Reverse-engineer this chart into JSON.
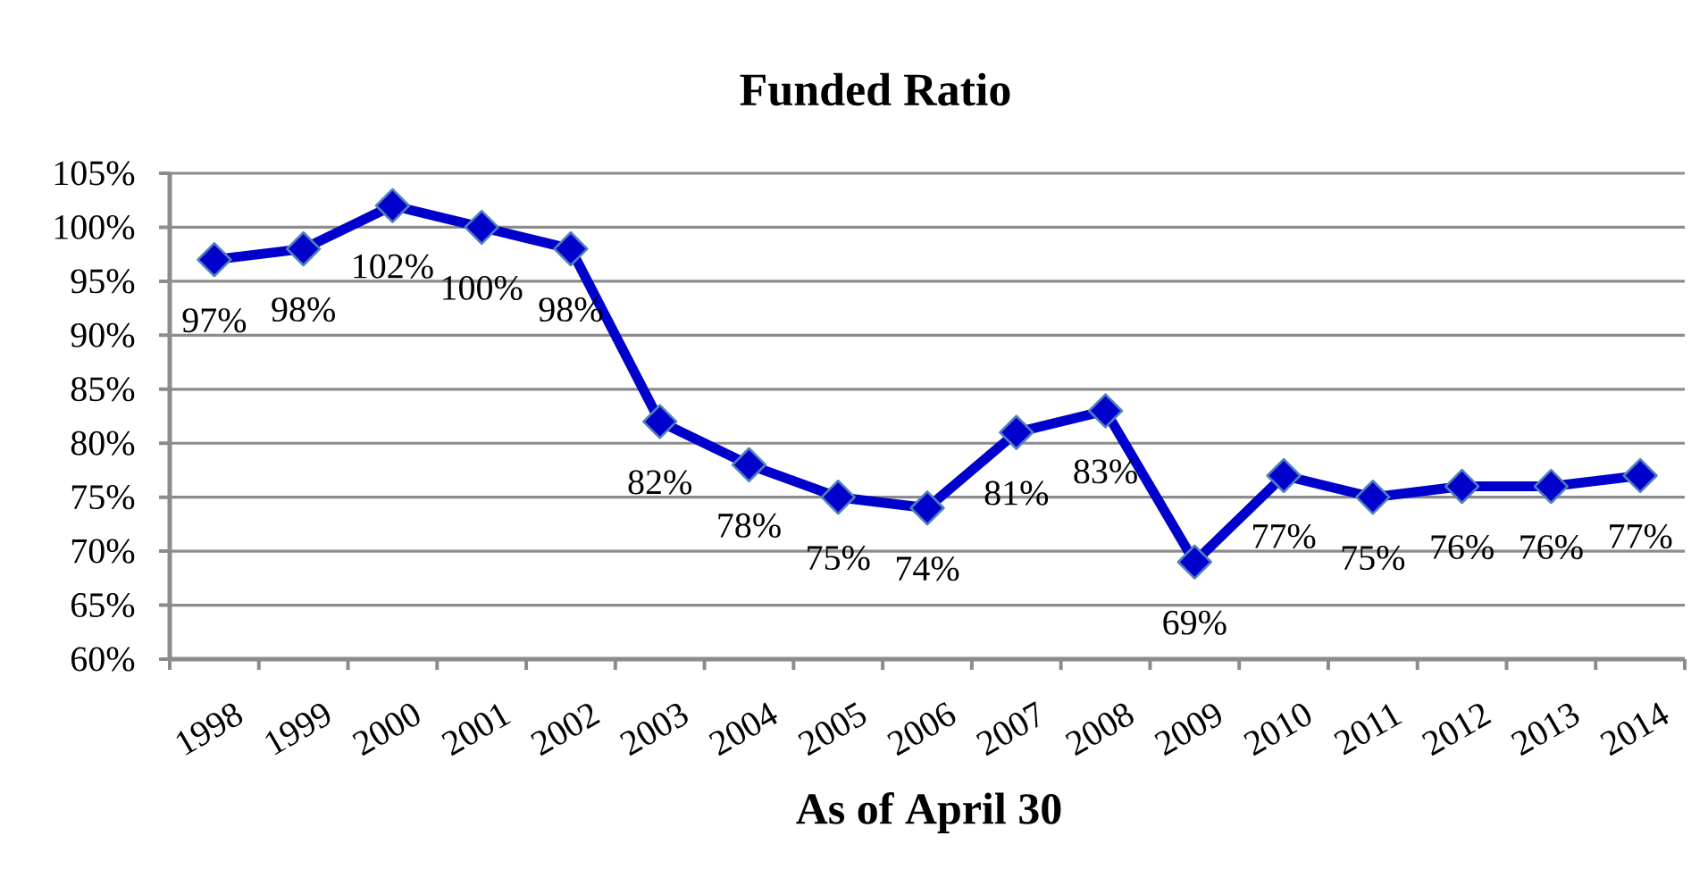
{
  "chart_data": {
    "type": "line",
    "title": "Funded Ratio",
    "xlabel": "As of April 30",
    "categories": [
      "1998",
      "1999",
      "2000",
      "2001",
      "2002",
      "2003",
      "2004",
      "2005",
      "2006",
      "2007",
      "2008",
      "2009",
      "2010",
      "2011",
      "2012",
      "2013",
      "2014"
    ],
    "values": [
      97,
      98,
      102,
      100,
      98,
      82,
      78,
      75,
      74,
      81,
      83,
      69,
      77,
      75,
      76,
      76,
      77
    ],
    "value_labels": [
      "97%",
      "98%",
      "102%",
      "100%",
      "98%",
      "82%",
      "78%",
      "75%",
      "74%",
      "81%",
      "83%",
      "69%",
      "77%",
      "75%",
      "76%",
      "76%",
      "77%"
    ],
    "color": "#0000cc",
    "ylim": [
      60,
      105
    ],
    "yticks": [
      {
        "value": 60,
        "label": "60%"
      },
      {
        "value": 65,
        "label": "65%"
      },
      {
        "value": 70,
        "label": "70%"
      },
      {
        "value": 75,
        "label": "75%"
      },
      {
        "value": 80,
        "label": "80%"
      },
      {
        "value": 85,
        "label": "85%"
      },
      {
        "value": 90,
        "label": "90%"
      },
      {
        "value": 95,
        "label": "95%"
      },
      {
        "value": 100,
        "label": "100%"
      },
      {
        "value": 105,
        "label": "105%"
      }
    ],
    "grid": "y",
    "marker": "diamond",
    "line_style": "solid"
  }
}
